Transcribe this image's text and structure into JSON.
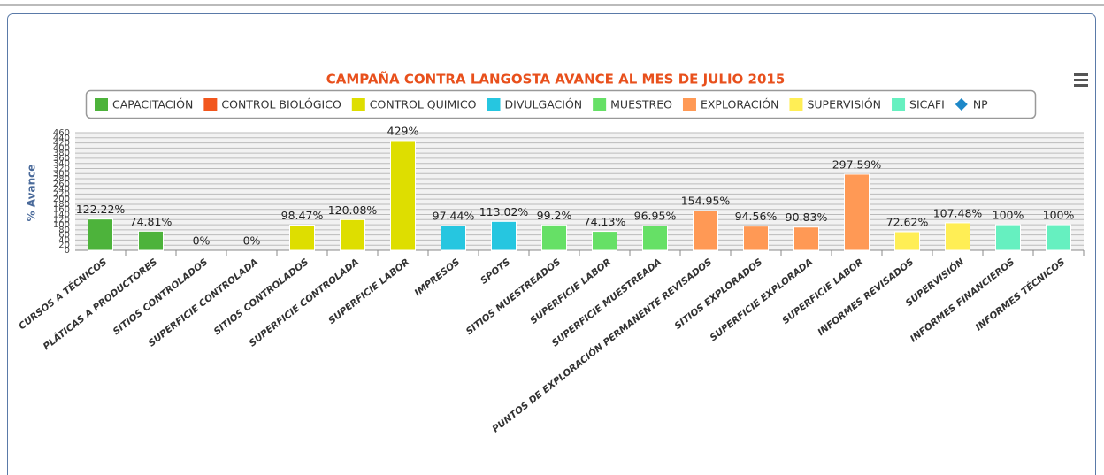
{
  "chart_data": {
    "type": "bar",
    "title": "CAMPAÑA CONTRA LANGOSTA AVANCE AL MES DE JULIO 2015",
    "y_axis_label": "% Avance",
    "categories": [
      "CURSOS A TÉCNICOS",
      "PLÁTICAS A PRODUCTORES",
      "SITIOS CONTROLADOS",
      "SUPERFICIE CONTROLADA",
      "SITIOS CONTROLADOS",
      "SUPERFICIE CONTROLADA",
      "SUPERFICIE LABOR",
      "IMPRESOS",
      "SPOTS",
      "SITIOS MUESTREADOS",
      "SUPERFICIE LABOR",
      "SUPERFICIE MUESTREADA",
      "PUNTOS DE EXPLORACIÓN PERMANENTE REVISADOS",
      "SITIOS EXPLORADOS",
      "SUPERFICIE EXPLORADA",
      "SUPERFICIE LABOR",
      "INFORMES REVISADOS",
      "SUPERVISIÓN",
      "INFORMES FINANCIEROS",
      "INFORMES TÉCNICOS"
    ],
    "series": [
      {
        "name": "CAPACITACIÓN",
        "color": "#4db33b",
        "values": [
          122.22,
          74.81,
          null,
          null,
          null,
          null,
          null,
          null,
          null,
          null,
          null,
          null,
          null,
          null,
          null,
          null,
          null,
          null,
          null,
          null
        ],
        "value_labels": [
          "122.22%",
          "74.81%",
          null,
          null,
          null,
          null,
          null,
          null,
          null,
          null,
          null,
          null,
          null,
          null,
          null,
          null,
          null,
          null,
          null,
          null
        ]
      },
      {
        "name": "CONTROL BIOLÓGICO",
        "color": "#f2561d",
        "values": [
          null,
          null,
          0,
          0,
          null,
          null,
          null,
          null,
          null,
          null,
          null,
          null,
          null,
          null,
          null,
          null,
          null,
          null,
          null,
          null
        ],
        "value_labels": [
          null,
          null,
          "0%",
          "0%",
          null,
          null,
          null,
          null,
          null,
          null,
          null,
          null,
          null,
          null,
          null,
          null,
          null,
          null,
          null,
          null
        ]
      },
      {
        "name": "CONTROL QUIMICO",
        "color": "#dede00",
        "values": [
          null,
          null,
          null,
          null,
          98.47,
          120.08,
          429,
          null,
          null,
          null,
          null,
          null,
          null,
          null,
          null,
          null,
          null,
          null,
          null,
          null
        ],
        "value_labels": [
          null,
          null,
          null,
          null,
          "98.47%",
          "120.08%",
          "429%",
          null,
          null,
          null,
          null,
          null,
          null,
          null,
          null,
          null,
          null,
          null,
          null,
          null
        ]
      },
      {
        "name": "DIVULGACIÓN",
        "color": "#26c6e0",
        "values": [
          null,
          null,
          null,
          null,
          null,
          null,
          null,
          97.44,
          113.02,
          null,
          null,
          null,
          null,
          null,
          null,
          null,
          null,
          null,
          null,
          null
        ],
        "value_labels": [
          null,
          null,
          null,
          null,
          null,
          null,
          null,
          "97.44%",
          "113.02%",
          null,
          null,
          null,
          null,
          null,
          null,
          null,
          null,
          null,
          null,
          null
        ]
      },
      {
        "name": "MUESTREO",
        "color": "#66e066",
        "values": [
          null,
          null,
          null,
          null,
          null,
          null,
          null,
          null,
          null,
          99.2,
          74.13,
          96.95,
          null,
          null,
          null,
          null,
          null,
          null,
          null,
          null
        ],
        "value_labels": [
          null,
          null,
          null,
          null,
          null,
          null,
          null,
          null,
          null,
          "99.2%",
          "74.13%",
          "96.95%",
          null,
          null,
          null,
          null,
          null,
          null,
          null,
          null
        ]
      },
      {
        "name": "EXPLORACIÓN",
        "color": "#ff9955",
        "values": [
          null,
          null,
          null,
          null,
          null,
          null,
          null,
          null,
          null,
          null,
          null,
          null,
          154.95,
          94.56,
          90.83,
          297.59,
          null,
          null,
          null,
          null
        ],
        "value_labels": [
          null,
          null,
          null,
          null,
          null,
          null,
          null,
          null,
          null,
          null,
          null,
          null,
          "154.95%",
          "94.56%",
          "90.83%",
          "297.59%",
          null,
          null,
          null,
          null
        ]
      },
      {
        "name": "SUPERVISIÓN",
        "color": "#ffee55",
        "values": [
          null,
          null,
          null,
          null,
          null,
          null,
          null,
          null,
          null,
          null,
          null,
          null,
          null,
          null,
          null,
          null,
          72.62,
          107.48,
          null,
          null
        ],
        "value_labels": [
          null,
          null,
          null,
          null,
          null,
          null,
          null,
          null,
          null,
          null,
          null,
          null,
          null,
          null,
          null,
          null,
          "72.62%",
          "107.48%",
          null,
          null
        ]
      },
      {
        "name": "SICAFI",
        "color": "#66f0c0",
        "values": [
          null,
          null,
          null,
          null,
          null,
          null,
          null,
          null,
          null,
          null,
          null,
          null,
          null,
          null,
          null,
          null,
          null,
          null,
          100,
          100
        ],
        "value_labels": [
          null,
          null,
          null,
          null,
          null,
          null,
          null,
          null,
          null,
          null,
          null,
          null,
          null,
          null,
          null,
          null,
          null,
          null,
          "100%",
          "100%"
        ]
      },
      {
        "name": "NP",
        "color": "#1e88c8",
        "marker": "diamond",
        "values": [
          null,
          null,
          null,
          null,
          null,
          null,
          null,
          null,
          null,
          null,
          null,
          null,
          null,
          null,
          null,
          null,
          null,
          null,
          null,
          null
        ]
      }
    ],
    "ylim": [
      0,
      460
    ],
    "yticks": [
      0,
      20,
      40,
      60,
      80,
      100,
      120,
      140,
      160,
      180,
      200,
      220,
      240,
      260,
      280,
      300,
      320,
      340,
      360,
      380,
      400,
      420,
      440,
      460
    ],
    "grid": true
  }
}
